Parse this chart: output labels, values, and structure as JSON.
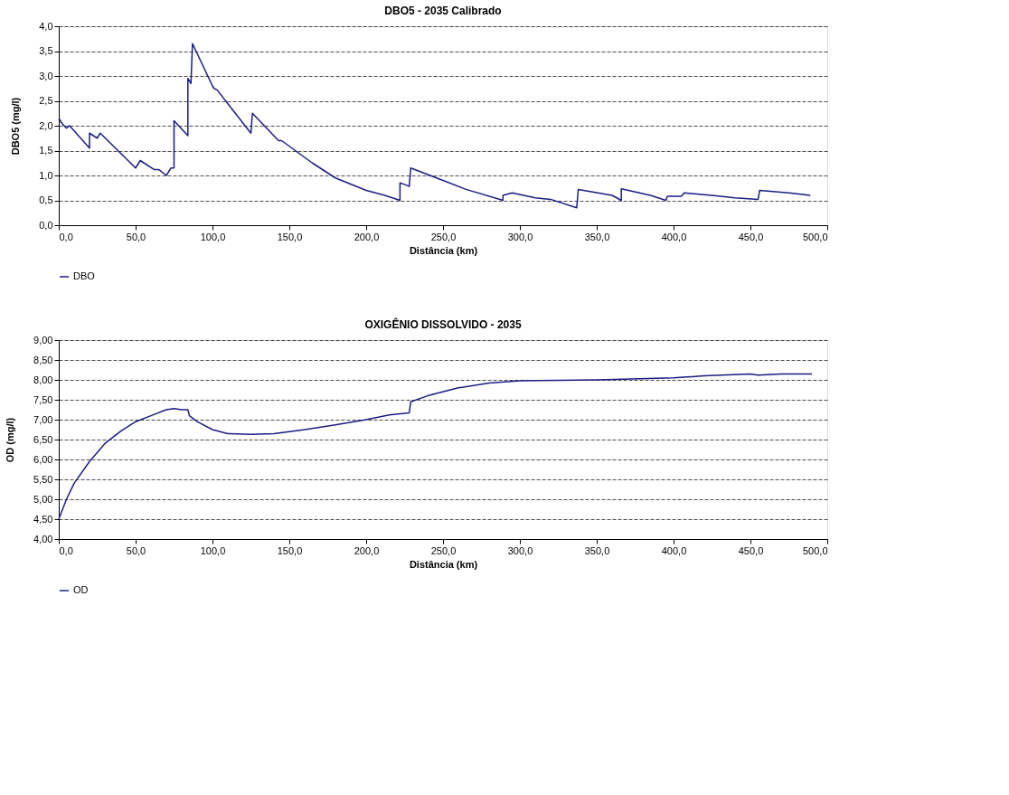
{
  "chart_data": [
    {
      "type": "line",
      "title": "DBO5 - 2035 Calibrado",
      "xlabel": "Distância (km)",
      "ylabel": "DBO5 (mg/l)",
      "grid": "y",
      "legend": "bottom",
      "line_style": "solid",
      "xlim": [
        0,
        500
      ],
      "ylim": [
        0,
        4
      ],
      "xticks": [
        {
          "value": 0,
          "label": "0,0"
        },
        {
          "value": 50,
          "label": "50,0"
        },
        {
          "value": 100,
          "label": "100,0"
        },
        {
          "value": 150,
          "label": "150,0"
        },
        {
          "value": 200,
          "label": "200,0"
        },
        {
          "value": 250,
          "label": "250,0"
        },
        {
          "value": 300,
          "label": "300,0"
        },
        {
          "value": 350,
          "label": "350,0"
        },
        {
          "value": 400,
          "label": "400,0"
        },
        {
          "value": 450,
          "label": "450,0"
        },
        {
          "value": 500,
          "label": "500,0"
        }
      ],
      "yticks": [
        {
          "value": 0,
          "label": "0,0"
        },
        {
          "value": 0.5,
          "label": "0,5"
        },
        {
          "value": 1,
          "label": "1,0"
        },
        {
          "value": 1.5,
          "label": "1,5"
        },
        {
          "value": 2,
          "label": "2,0"
        },
        {
          "value": 2.5,
          "label": "2,5"
        },
        {
          "value": 3,
          "label": "3,0"
        },
        {
          "value": 3.5,
          "label": "3,5"
        },
        {
          "value": 4,
          "label": "4,0"
        }
      ],
      "series": [
        {
          "name": "DBO",
          "color": "#1c1c84",
          "x": [
            0,
            2,
            5,
            7,
            20,
            20,
            25,
            27,
            50,
            53,
            62,
            65,
            70,
            73,
            75,
            75,
            84,
            84,
            86,
            87,
            100,
            101,
            103,
            125,
            126,
            143,
            145,
            165,
            180,
            200,
            210,
            212,
            222,
            222,
            225,
            228,
            229,
            250,
            265,
            289,
            289,
            295,
            310,
            320,
            337,
            338,
            360,
            366,
            366,
            385,
            395,
            396,
            405,
            407,
            425,
            440,
            455,
            456,
            475,
            489
          ],
          "values": [
            2.15,
            2.05,
            1.95,
            2.0,
            1.55,
            1.85,
            1.75,
            1.85,
            1.15,
            1.3,
            1.12,
            1.12,
            1.0,
            1.15,
            1.15,
            2.1,
            1.8,
            2.95,
            2.85,
            3.65,
            2.8,
            2.75,
            2.72,
            1.85,
            2.25,
            1.7,
            1.7,
            1.25,
            0.95,
            0.7,
            0.62,
            0.6,
            0.5,
            0.85,
            0.82,
            0.78,
            1.15,
            0.9,
            0.72,
            0.5,
            0.6,
            0.65,
            0.55,
            0.52,
            0.35,
            0.72,
            0.6,
            0.5,
            0.73,
            0.6,
            0.5,
            0.58,
            0.58,
            0.65,
            0.6,
            0.55,
            0.52,
            0.7,
            0.65,
            0.6
          ]
        }
      ]
    },
    {
      "type": "line",
      "title": "OXIGÊNIO DISSOLVIDO - 2035",
      "xlabel": "Distância (km)",
      "ylabel": "OD (mg/l)",
      "grid": "y",
      "legend": "bottom",
      "line_style": "solid",
      "xlim": [
        0,
        500
      ],
      "ylim": [
        4,
        9
      ],
      "xticks": [
        {
          "value": 0,
          "label": "0,0"
        },
        {
          "value": 50,
          "label": "50,0"
        },
        {
          "value": 100,
          "label": "100,0"
        },
        {
          "value": 150,
          "label": "150,0"
        },
        {
          "value": 200,
          "label": "200,0"
        },
        {
          "value": 250,
          "label": "250,0"
        },
        {
          "value": 300,
          "label": "300,0"
        },
        {
          "value": 350,
          "label": "350,0"
        },
        {
          "value": 400,
          "label": "400,0"
        },
        {
          "value": 450,
          "label": "450,0"
        },
        {
          "value": 500,
          "label": "500,0"
        }
      ],
      "yticks": [
        {
          "value": 4,
          "label": "4,00"
        },
        {
          "value": 4.5,
          "label": "4,50"
        },
        {
          "value": 5,
          "label": "5,00"
        },
        {
          "value": 5.5,
          "label": "5,50"
        },
        {
          "value": 6,
          "label": "6,00"
        },
        {
          "value": 6.5,
          "label": "6,50"
        },
        {
          "value": 7,
          "label": "7,00"
        },
        {
          "value": 7.5,
          "label": "7,50"
        },
        {
          "value": 8,
          "label": "8,00"
        },
        {
          "value": 8.5,
          "label": "8,50"
        },
        {
          "value": 9,
          "label": "9,00"
        }
      ],
      "series": [
        {
          "name": "OD",
          "color": "#1c1c84",
          "x": [
            0,
            5,
            10,
            20,
            30,
            40,
            50,
            60,
            70,
            75,
            80,
            84,
            85,
            90,
            100,
            110,
            125,
            140,
            160,
            180,
            200,
            215,
            228,
            229,
            240,
            260,
            280,
            300,
            350,
            400,
            420,
            450,
            455,
            470,
            490
          ],
          "values": [
            4.5,
            5.0,
            5.4,
            5.95,
            6.4,
            6.7,
            6.95,
            7.1,
            7.25,
            7.28,
            7.25,
            7.25,
            7.1,
            6.95,
            6.75,
            6.65,
            6.63,
            6.65,
            6.75,
            6.87,
            7.0,
            7.12,
            7.17,
            7.45,
            7.6,
            7.8,
            7.92,
            7.98,
            8.0,
            8.05,
            8.1,
            8.15,
            8.12,
            8.15,
            8.15
          ]
        }
      ]
    }
  ]
}
